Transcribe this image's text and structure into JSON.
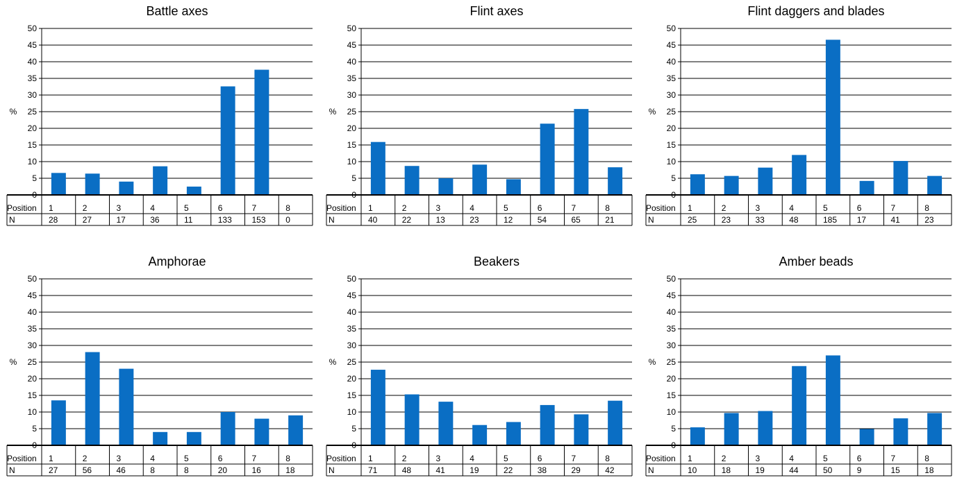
{
  "chart_data": [
    {
      "type": "bar",
      "title": "Battle axes",
      "ylabel": "%",
      "ylim": [
        0,
        50
      ],
      "yticks": [
        0,
        5,
        10,
        15,
        20,
        25,
        30,
        35,
        40,
        45,
        50
      ],
      "grid": true,
      "row_labels": {
        "position": "Position",
        "n": "N"
      },
      "categories": [
        "1",
        "2",
        "3",
        "4",
        "5",
        "6",
        "7",
        "8"
      ],
      "values": [
        6.6,
        6.4,
        4.0,
        8.6,
        2.5,
        32.6,
        37.6,
        0
      ],
      "n": [
        "28",
        "27",
        "17",
        "36",
        "11",
        "133",
        "153",
        "0"
      ],
      "bar_color": "#0A6EC4"
    },
    {
      "type": "bar",
      "title": "Flint axes",
      "ylabel": "%",
      "ylim": [
        0,
        50
      ],
      "yticks": [
        0,
        5,
        10,
        15,
        20,
        25,
        30,
        35,
        40,
        45,
        50
      ],
      "grid": true,
      "row_labels": {
        "position": "Position",
        "n": "N"
      },
      "categories": [
        "1",
        "2",
        "3",
        "4",
        "5",
        "6",
        "7",
        "8"
      ],
      "values": [
        15.9,
        8.7,
        5.0,
        9.1,
        4.7,
        21.4,
        25.8,
        8.3
      ],
      "n": [
        "40",
        "22",
        "13",
        "23",
        "12",
        "54",
        "65",
        "21"
      ],
      "bar_color": "#0A6EC4"
    },
    {
      "type": "bar",
      "title": "Flint daggers and blades",
      "ylabel": "%",
      "ylim": [
        0,
        50
      ],
      "yticks": [
        0,
        5,
        10,
        15,
        20,
        25,
        30,
        35,
        40,
        45,
        50
      ],
      "grid": true,
      "row_labels": {
        "position": "Position",
        "n": "N"
      },
      "categories": [
        "1",
        "2",
        "3",
        "4",
        "5",
        "6",
        "7",
        "8"
      ],
      "values": [
        6.2,
        5.7,
        8.2,
        12.0,
        46.6,
        4.2,
        10.2,
        5.7
      ],
      "n": [
        "25",
        "23",
        "33",
        "48",
        "185",
        "17",
        "41",
        "23"
      ],
      "bar_color": "#0A6EC4"
    },
    {
      "type": "bar",
      "title": "Amphorae",
      "ylabel": "%",
      "ylim": [
        0,
        50
      ],
      "yticks": [
        0,
        5,
        10,
        15,
        20,
        25,
        30,
        35,
        40,
        45,
        50
      ],
      "grid": true,
      "row_labels": {
        "position": "Position",
        "n": "N"
      },
      "categories": [
        "1",
        "2",
        "3",
        "4",
        "5",
        "6",
        "7",
        "8"
      ],
      "values": [
        13.5,
        28.0,
        23.0,
        4.0,
        4.0,
        10.0,
        8.0,
        9.0
      ],
      "n": [
        "27",
        "56",
        "46",
        "8",
        "8",
        "20",
        "16",
        "18"
      ],
      "bar_color": "#0A6EC4"
    },
    {
      "type": "bar",
      "title": "Beakers",
      "ylabel": "%",
      "ylim": [
        0,
        50
      ],
      "yticks": [
        0,
        5,
        10,
        15,
        20,
        25,
        30,
        35,
        40,
        45,
        50
      ],
      "grid": true,
      "row_labels": {
        "position": "Position",
        "n": "N"
      },
      "categories": [
        "1",
        "2",
        "3",
        "4",
        "5",
        "6",
        "7",
        "8"
      ],
      "values": [
        22.7,
        15.3,
        13.1,
        6.1,
        7.0,
        12.1,
        9.3,
        13.4
      ],
      "n": [
        "71",
        "48",
        "41",
        "19",
        "22",
        "38",
        "29",
        "42"
      ],
      "bar_color": "#0A6EC4"
    },
    {
      "type": "bar",
      "title": "Amber beads",
      "ylabel": "%",
      "ylim": [
        0,
        50
      ],
      "yticks": [
        0,
        5,
        10,
        15,
        20,
        25,
        30,
        35,
        40,
        45,
        50
      ],
      "grid": true,
      "row_labels": {
        "position": "Position",
        "n": "N"
      },
      "categories": [
        "1",
        "2",
        "3",
        "4",
        "5",
        "6",
        "7",
        "8"
      ],
      "values": [
        5.4,
        9.7,
        10.3,
        23.8,
        27.0,
        4.9,
        8.1,
        9.7
      ],
      "n": [
        "10",
        "18",
        "19",
        "44",
        "50",
        "9",
        "15",
        "18"
      ],
      "bar_color": "#0A6EC4"
    }
  ]
}
